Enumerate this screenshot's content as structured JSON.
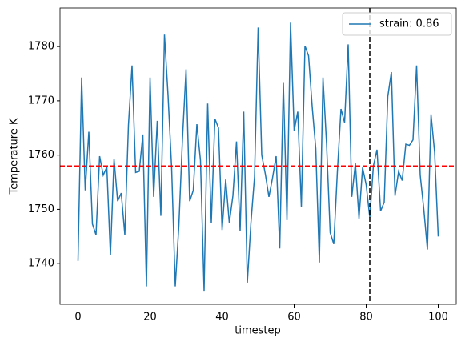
{
  "chart_data": {
    "type": "line",
    "x_label": "timestep",
    "y_label": "Temperature K",
    "x": [
      0,
      1,
      2,
      3,
      4,
      5,
      6,
      7,
      8,
      9,
      10,
      11,
      12,
      13,
      14,
      15,
      16,
      17,
      18,
      19,
      20,
      21,
      22,
      23,
      24,
      25,
      26,
      27,
      28,
      29,
      30,
      31,
      32,
      33,
      34,
      35,
      36,
      37,
      38,
      39,
      40,
      41,
      42,
      43,
      44,
      45,
      46,
      47,
      48,
      49,
      50,
      51,
      52,
      53,
      54,
      55,
      56,
      57,
      58,
      59,
      60,
      61,
      62,
      63,
      64,
      65,
      66,
      67,
      68,
      69,
      70,
      71,
      72,
      73,
      74,
      75,
      76,
      77,
      78,
      79,
      80,
      81,
      82,
      83,
      84,
      85,
      86,
      87,
      88,
      89,
      90,
      91,
      92,
      93,
      94,
      95,
      96,
      97,
      98,
      99,
      100
    ],
    "series": [
      {
        "name": "strain: 0.86",
        "color": "#1f77b4",
        "values": [
          1740.5,
          1774.3,
          1753.5,
          1764.3,
          1747.3,
          1745.3,
          1759.8,
          1756.3,
          1757.8,
          1741.5,
          1759.3,
          1751.5,
          1753.0,
          1745.3,
          1765.5,
          1776.5,
          1756.8,
          1757.0,
          1763.8,
          1735.8,
          1774.3,
          1752.3,
          1766.3,
          1748.8,
          1782.2,
          1771.0,
          1757.5,
          1735.8,
          1747.0,
          1763.0,
          1775.8,
          1751.5,
          1753.5,
          1765.7,
          1759.0,
          1735.0,
          1769.5,
          1747.5,
          1766.7,
          1765.0,
          1746.2,
          1755.5,
          1747.5,
          1752.5,
          1762.5,
          1746.0,
          1768.0,
          1736.5,
          1747.5,
          1756.0,
          1783.5,
          1760.0,
          1756.5,
          1752.3,
          1755.8,
          1759.8,
          1742.8,
          1773.3,
          1748.0,
          1784.4,
          1764.5,
          1768.0,
          1750.5,
          1780.1,
          1778.3,
          1769.0,
          1761.2,
          1740.2,
          1774.3,
          1762.0,
          1745.7,
          1743.6,
          1757.0,
          1768.5,
          1766.0,
          1780.4,
          1752.3,
          1758.5,
          1748.3,
          1757.7,
          1754.5,
          1748.5,
          1758.0,
          1761.0,
          1749.7,
          1751.3,
          1770.8,
          1775.3,
          1752.5,
          1757.0,
          1755.3,
          1762.0,
          1761.8,
          1762.8,
          1776.5,
          1756.3,
          1750.0,
          1742.6,
          1767.5,
          1760.5,
          1745.0
        ]
      }
    ],
    "hline": {
      "value": 1758,
      "color": "#ff0000"
    },
    "vline": {
      "value": 81,
      "color": "#000000"
    },
    "xlim": [
      -5,
      105
    ],
    "xticks": [
      0,
      20,
      40,
      60,
      80,
      100
    ],
    "ylim": [
      1732.5,
      1787.1
    ],
    "yticks": [
      1740,
      1750,
      1760,
      1770,
      1780
    ],
    "legend": "upper right"
  }
}
